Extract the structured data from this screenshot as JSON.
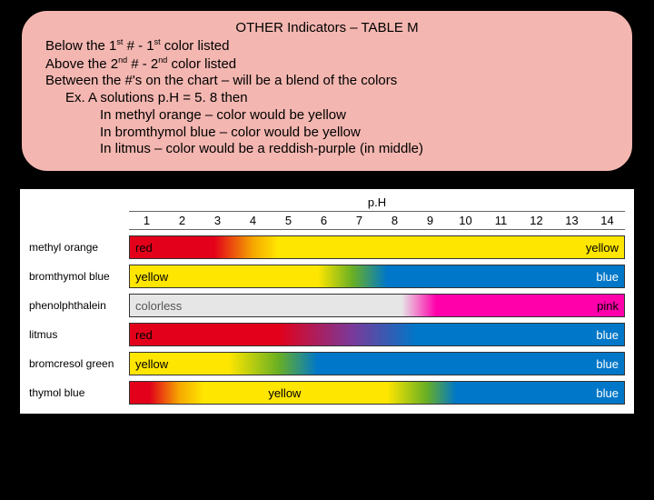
{
  "info": {
    "title": "OTHER Indicators – TABLE M",
    "lines": [
      {
        "text": "Below the 1",
        "sup": "st",
        "rest": " # - 1",
        "sup2": "st",
        "rest2": " color listed",
        "indent": 0
      },
      {
        "text": "Above the 2",
        "sup": "nd",
        "rest": " # - 2",
        "sup2": "nd",
        "rest2": " color listed",
        "indent": 0
      },
      {
        "text": "Between the #'s on the chart – will be a blend of the colors",
        "indent": 0
      },
      {
        "text": "Ex.  A solutions p.H = 5. 8 then",
        "indent": 1
      },
      {
        "text": "In methyl orange – color would be yellow",
        "indent": 2
      },
      {
        "text": "In bromthymol blue – color would be yellow",
        "indent": 2
      },
      {
        "text": "In litmus – color would be a reddish-purple (in middle)",
        "indent": 2
      }
    ]
  },
  "chart": {
    "ph_label": "p.H",
    "ph_start": 1,
    "ph_end": 14,
    "rows": [
      {
        "name": "methyl orange",
        "left_text": "red",
        "right_text": "yellow",
        "left_text_color": "#000",
        "right_text_color": "#000",
        "stops": [
          {
            "pct": 0,
            "color": "#e2001a"
          },
          {
            "pct": 17,
            "color": "#e2001a"
          },
          {
            "pct": 25,
            "color": "#f6a800"
          },
          {
            "pct": 30,
            "color": "#ffe600"
          },
          {
            "pct": 100,
            "color": "#ffe600"
          }
        ]
      },
      {
        "name": "bromthymol blue",
        "left_text": "yellow",
        "right_text": "blue",
        "left_text_color": "#000",
        "right_text_color": "#fff",
        "stops": [
          {
            "pct": 0,
            "color": "#ffe600"
          },
          {
            "pct": 38,
            "color": "#ffe600"
          },
          {
            "pct": 45,
            "color": "#6ab023"
          },
          {
            "pct": 52,
            "color": "#0077c8"
          },
          {
            "pct": 100,
            "color": "#0077c8"
          }
        ]
      },
      {
        "name": "phenolphthalein",
        "left_text": "colorless",
        "right_text": "pink",
        "left_text_color": "#555",
        "right_text_color": "#000",
        "stops": [
          {
            "pct": 0,
            "color": "#e6e6e6"
          },
          {
            "pct": 55,
            "color": "#e6e6e6"
          },
          {
            "pct": 62,
            "color": "#ff00aa"
          },
          {
            "pct": 68,
            "color": "#ff00aa"
          },
          {
            "pct": 100,
            "color": "#ff00aa"
          }
        ]
      },
      {
        "name": "litmus",
        "left_text": "red",
        "right_text": "blue",
        "left_text_color": "#000",
        "right_text_color": "#fff",
        "stops": [
          {
            "pct": 0,
            "color": "#e2001a"
          },
          {
            "pct": 30,
            "color": "#e2001a"
          },
          {
            "pct": 45,
            "color": "#7a3a9a"
          },
          {
            "pct": 58,
            "color": "#0077c8"
          },
          {
            "pct": 100,
            "color": "#0077c8"
          }
        ]
      },
      {
        "name": "bromcresol green",
        "left_text": "yellow",
        "right_text": "blue",
        "left_text_color": "#000",
        "right_text_color": "#fff",
        "stops": [
          {
            "pct": 0,
            "color": "#ffe600"
          },
          {
            "pct": 20,
            "color": "#ffe600"
          },
          {
            "pct": 30,
            "color": "#6ab023"
          },
          {
            "pct": 38,
            "color": "#0077c8"
          },
          {
            "pct": 100,
            "color": "#0077c8"
          }
        ]
      },
      {
        "name": "thymol blue",
        "left_text": "",
        "mid_text": "yellow",
        "mid_pct": 28,
        "right_text": "blue",
        "left_text_color": "#000",
        "right_text_color": "#fff",
        "stops": [
          {
            "pct": 0,
            "color": "#e2001a"
          },
          {
            "pct": 4,
            "color": "#e2001a"
          },
          {
            "pct": 10,
            "color": "#f6a800"
          },
          {
            "pct": 15,
            "color": "#ffe600"
          },
          {
            "pct": 52,
            "color": "#ffe600"
          },
          {
            "pct": 60,
            "color": "#6ab023"
          },
          {
            "pct": 66,
            "color": "#0077c8"
          },
          {
            "pct": 100,
            "color": "#0077c8"
          }
        ]
      }
    ]
  }
}
